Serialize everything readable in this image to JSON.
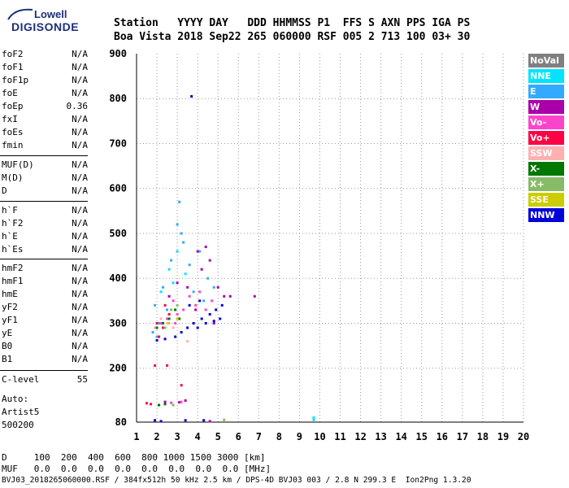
{
  "logo": {
    "line1": "Lowell",
    "line2": "DIGISONDE"
  },
  "header": {
    "labels": "Station   YYYY DAY   DDD HHMMSS P1  FFS S AXN PPS IGA PS",
    "values": "Boa Vista 2018 Sep22 265 060000 RSF 005 2 713 100 03+ 30"
  },
  "params": {
    "g1": [
      {
        "name": "foF2",
        "value": "N/A"
      },
      {
        "name": "foF1",
        "value": "N/A"
      },
      {
        "name": "foF1p",
        "value": "N/A"
      },
      {
        "name": "foE",
        "value": "N/A"
      },
      {
        "name": "foEp",
        "value": "0.36"
      },
      {
        "name": "fxI",
        "value": "N/A"
      },
      {
        "name": "foEs",
        "value": "N/A"
      },
      {
        "name": "fmin",
        "value": "N/A"
      }
    ],
    "g2": [
      {
        "name": "MUF(D)",
        "value": "N/A"
      },
      {
        "name": "M(D)",
        "value": "N/A"
      },
      {
        "name": "D",
        "value": "N/A"
      }
    ],
    "g3": [
      {
        "name": "h`F",
        "value": "N/A"
      },
      {
        "name": "h`F2",
        "value": "N/A"
      },
      {
        "name": "h`E",
        "value": "N/A"
      },
      {
        "name": "h`Es",
        "value": "N/A"
      }
    ],
    "g4": [
      {
        "name": "hmF2",
        "value": "N/A"
      },
      {
        "name": "hmF1",
        "value": "N/A"
      },
      {
        "name": "hmE",
        "value": "N/A"
      },
      {
        "name": "yF2",
        "value": "N/A"
      },
      {
        "name": "yF1",
        "value": "N/A"
      },
      {
        "name": "yE",
        "value": "N/A"
      },
      {
        "name": "B0",
        "value": "N/A"
      },
      {
        "name": "B1",
        "value": "N/A"
      }
    ],
    "clevel": {
      "name": "C-level",
      "value": "55"
    }
  },
  "auto": {
    "line1": "Auto:",
    "line2": "Artist5",
    "line3": "500200"
  },
  "legend": [
    {
      "label": "NoVal",
      "bg": "#808080",
      "fg": "#ffffff"
    },
    {
      "label": "NNE",
      "bg": "#00e5ff",
      "fg": "#ffffff"
    },
    {
      "label": "E",
      "bg": "#33aaff",
      "fg": "#ffffff"
    },
    {
      "label": "W",
      "bg": "#aa00aa",
      "fg": "#ffffff"
    },
    {
      "label": "Vo-",
      "bg": "#ff44cc",
      "fg": "#ffffff"
    },
    {
      "label": "Vo+",
      "bg": "#ff0044",
      "fg": "#ffffff"
    },
    {
      "label": "SSW",
      "bg": "#ffb0b0",
      "fg": "#ffffff"
    },
    {
      "label": "X-",
      "bg": "#007700",
      "fg": "#ffffff"
    },
    {
      "label": "X+",
      "bg": "#88bb66",
      "fg": "#ffffff"
    },
    {
      "label": "SSE",
      "bg": "#cccc00",
      "fg": "#ffffff"
    },
    {
      "label": "NNW",
      "bg": "#0000dd",
      "fg": "#ffffff"
    }
  ],
  "bottom": {
    "d_row": "D     100  200  400  600  800 1000 1500 3000 [km]",
    "muf_row": "MUF   0.0  0.0  0.0  0.0  0.0  0.0  0.0  0.0 [MHz]",
    "footer": "BVJ03_2018265060000.RSF / 384fx512h 50 kHz 2.5 km / DPS-4D BVJ03 003 / 2.8 N 299.3 E  Ion2Png 1.3.20"
  },
  "chart_data": {
    "type": "scatter",
    "xlim": [
      1,
      20
    ],
    "ylim": [
      80,
      900
    ],
    "x_ticks": [
      1,
      2,
      3,
      4,
      5,
      6,
      7,
      8,
      9,
      10,
      11,
      12,
      13,
      14,
      15,
      16,
      17,
      18,
      19,
      20
    ],
    "y_ticks": [
      80,
      200,
      300,
      400,
      500,
      600,
      700,
      800,
      900
    ],
    "grid": true,
    "series": [
      {
        "name": "NNE",
        "color": "#00e5ff",
        "points": [
          [
            2.2,
            370
          ],
          [
            2.6,
            420
          ],
          [
            3.0,
            460
          ],
          [
            2.8,
            390
          ],
          [
            3.4,
            410
          ],
          [
            9.7,
            85
          ],
          [
            9.7,
            90
          ]
        ]
      },
      {
        "name": "E",
        "color": "#33aaff",
        "points": [
          [
            1.9,
            340
          ],
          [
            2.3,
            380
          ],
          [
            2.7,
            440
          ],
          [
            3.0,
            520
          ],
          [
            3.3,
            480
          ],
          [
            3.6,
            430
          ],
          [
            4.1,
            460
          ],
          [
            4.5,
            400
          ],
          [
            4.8,
            380
          ],
          [
            2.1,
            300
          ],
          [
            2.5,
            330
          ],
          [
            3.1,
            570
          ],
          [
            3.2,
            500
          ],
          [
            3.8,
            370
          ],
          [
            4.3,
            350
          ],
          [
            1.8,
            280
          ],
          [
            2.0,
            270
          ]
        ]
      },
      {
        "name": "W",
        "color": "#aa00aa",
        "points": [
          [
            3.5,
            380
          ],
          [
            4.2,
            420
          ],
          [
            4.6,
            440
          ],
          [
            5.0,
            380
          ],
          [
            5.3,
            360
          ],
          [
            5.6,
            360
          ],
          [
            4.8,
            300
          ],
          [
            3.9,
            330
          ],
          [
            2.6,
            360
          ],
          [
            3.0,
            390
          ],
          [
            4.0,
            460
          ],
          [
            4.4,
            470
          ],
          [
            6.8,
            360
          ],
          [
            2.4,
            125
          ],
          [
            3.1,
            124
          ],
          [
            3.4,
            128
          ],
          [
            4.6,
            82
          ]
        ]
      },
      {
        "name": "Vo-",
        "color": "#ff44cc",
        "points": [
          [
            2.8,
            350
          ],
          [
            3.0,
            320
          ],
          [
            3.3,
            330
          ],
          [
            3.6,
            360
          ],
          [
            3.9,
            340
          ],
          [
            4.1,
            370
          ],
          [
            2.5,
            310
          ],
          [
            2.2,
            300
          ],
          [
            4.4,
            330
          ],
          [
            4.7,
            350
          ],
          [
            2.9,
            300
          ],
          [
            3.2,
            125
          ],
          [
            2.7,
            123
          ]
        ]
      },
      {
        "name": "Vo+",
        "color": "#ff0044",
        "points": [
          [
            2.0,
            300
          ],
          [
            2.3,
            290
          ],
          [
            2.6,
            320
          ],
          [
            2.4,
            340
          ],
          [
            2.1,
            270
          ],
          [
            1.7,
            120
          ],
          [
            1.5,
            122
          ],
          [
            1.9,
            206
          ],
          [
            2.5,
            206
          ],
          [
            3.2,
            162
          ]
        ]
      },
      {
        "name": "SSW",
        "color": "#ffb0b0",
        "points": [
          [
            2.2,
            310
          ],
          [
            2.5,
            300
          ],
          [
            2.8,
            290
          ],
          [
            3.5,
            260
          ],
          [
            1.9,
            290
          ]
        ]
      },
      {
        "name": "X-",
        "color": "#007700",
        "points": [
          [
            2.3,
            300
          ],
          [
            2.6,
            310
          ],
          [
            2.9,
            330
          ],
          [
            3.1,
            310
          ],
          [
            2.0,
            290
          ],
          [
            2.4,
            120
          ],
          [
            2.1,
            118
          ]
        ]
      },
      {
        "name": "X+",
        "color": "#88bb66",
        "points": [
          [
            2.7,
            330
          ],
          [
            3.0,
            340
          ],
          [
            2.4,
            290
          ],
          [
            2.8,
            118
          ],
          [
            5.3,
            85
          ]
        ]
      },
      {
        "name": "SSE",
        "color": "#cccc00",
        "points": [
          [
            2.6,
            300
          ],
          [
            3.0,
            310
          ]
        ]
      },
      {
        "name": "NNW",
        "color": "#0000dd",
        "points": [
          [
            3.8,
            300
          ],
          [
            4.2,
            310
          ],
          [
            4.6,
            320
          ],
          [
            4.9,
            330
          ],
          [
            5.2,
            340
          ],
          [
            3.5,
            290
          ],
          [
            3.2,
            280
          ],
          [
            2.9,
            270
          ],
          [
            2.4,
            265
          ],
          [
            2.0,
            262
          ],
          [
            4.0,
            290
          ],
          [
            4.4,
            300
          ],
          [
            4.8,
            305
          ],
          [
            5.1,
            310
          ],
          [
            3.6,
            340
          ],
          [
            4.1,
            350
          ],
          [
            3.7,
            805
          ],
          [
            1.9,
            84
          ],
          [
            2.2,
            82
          ],
          [
            3.4,
            84
          ],
          [
            4.3,
            84
          ]
        ]
      }
    ]
  }
}
